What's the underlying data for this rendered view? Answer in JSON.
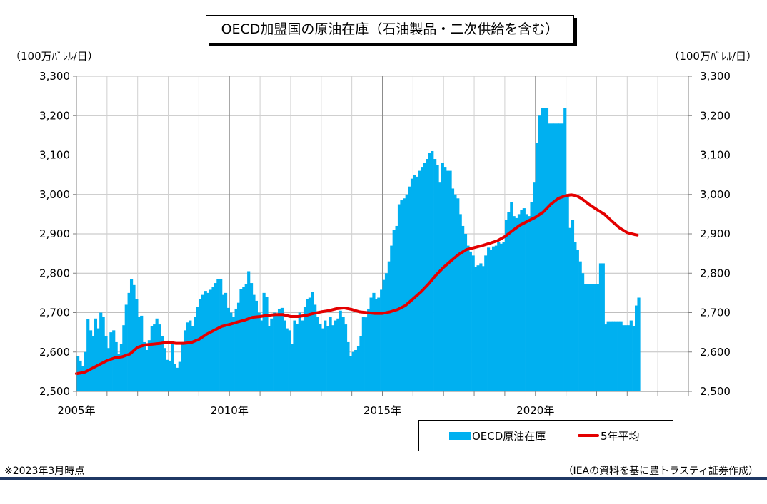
{
  "title": "OECD加盟国の原油在庫（石油製品・二次供給を含む）",
  "unit_left": "（100万ﾊﾞﾚﾙ/日）",
  "unit_right": "（100万ﾊﾞﾚﾙ/日）",
  "footnote": "※2023年3月時点",
  "source": "（IEAの資料を基に豊トラスティ証券作成）",
  "chart_data": {
    "type": "bar",
    "title": "OECD加盟国の原油在庫（石油製品・二次供給を含む）",
    "ylim": [
      2500,
      3300
    ],
    "y_ticks": [
      "2,500",
      "2,600",
      "2,700",
      "2,800",
      "2,900",
      "3,000",
      "3,100",
      "3,200",
      "3,300"
    ],
    "x_range": [
      2005.0,
      2025.0
    ],
    "x_ticks": [
      "2005年",
      "2010年",
      "2015年",
      "2020年"
    ],
    "x_tick_values": [
      2005,
      2010,
      2015,
      2020
    ],
    "grid": true,
    "legend_position": "bottom-right",
    "colors": {
      "bars": "#00b0f0",
      "line": "#e30000"
    },
    "series": [
      {
        "name": "OECD原油在庫",
        "type": "bar",
        "points": [
          [
            2005.0,
            2590
          ],
          [
            2005.08,
            2578
          ],
          [
            2005.17,
            2565
          ],
          [
            2005.25,
            2600
          ],
          [
            2005.33,
            2683
          ],
          [
            2005.42,
            2655
          ],
          [
            2005.5,
            2640
          ],
          [
            2005.58,
            2685
          ],
          [
            2005.67,
            2660
          ],
          [
            2005.75,
            2700
          ],
          [
            2005.83,
            2690
          ],
          [
            2005.92,
            2640
          ],
          [
            2006.0,
            2610
          ],
          [
            2006.08,
            2650
          ],
          [
            2006.17,
            2655
          ],
          [
            2006.25,
            2625
          ],
          [
            2006.33,
            2595
          ],
          [
            2006.42,
            2620
          ],
          [
            2006.5,
            2668
          ],
          [
            2006.58,
            2720
          ],
          [
            2006.67,
            2750
          ],
          [
            2006.75,
            2785
          ],
          [
            2006.83,
            2770
          ],
          [
            2006.92,
            2735
          ],
          [
            2007.0,
            2690
          ],
          [
            2007.08,
            2692
          ],
          [
            2007.17,
            2625
          ],
          [
            2007.25,
            2605
          ],
          [
            2007.33,
            2630
          ],
          [
            2007.42,
            2665
          ],
          [
            2007.5,
            2670
          ],
          [
            2007.58,
            2685
          ],
          [
            2007.67,
            2670
          ],
          [
            2007.75,
            2640
          ],
          [
            2007.83,
            2610
          ],
          [
            2007.92,
            2580
          ],
          [
            2008.0,
            2578
          ],
          [
            2008.08,
            2625
          ],
          [
            2008.17,
            2570
          ],
          [
            2008.25,
            2560
          ],
          [
            2008.33,
            2575
          ],
          [
            2008.42,
            2625
          ],
          [
            2008.5,
            2655
          ],
          [
            2008.58,
            2675
          ],
          [
            2008.67,
            2680
          ],
          [
            2008.75,
            2665
          ],
          [
            2008.83,
            2690
          ],
          [
            2008.92,
            2715
          ],
          [
            2009.0,
            2735
          ],
          [
            2009.08,
            2745
          ],
          [
            2009.17,
            2755
          ],
          [
            2009.25,
            2750
          ],
          [
            2009.33,
            2758
          ],
          [
            2009.42,
            2765
          ],
          [
            2009.5,
            2775
          ],
          [
            2009.58,
            2785
          ],
          [
            2009.67,
            2786
          ],
          [
            2009.75,
            2745
          ],
          [
            2009.83,
            2750
          ],
          [
            2009.92,
            2712
          ],
          [
            2010.0,
            2700
          ],
          [
            2010.08,
            2690
          ],
          [
            2010.17,
            2710
          ],
          [
            2010.25,
            2725
          ],
          [
            2010.33,
            2760
          ],
          [
            2010.42,
            2765
          ],
          [
            2010.5,
            2772
          ],
          [
            2010.58,
            2805
          ],
          [
            2010.67,
            2775
          ],
          [
            2010.75,
            2745
          ],
          [
            2010.83,
            2730
          ],
          [
            2010.92,
            2700
          ],
          [
            2011.0,
            2680
          ],
          [
            2011.08,
            2750
          ],
          [
            2011.17,
            2740
          ],
          [
            2011.25,
            2665
          ],
          [
            2011.33,
            2685
          ],
          [
            2011.42,
            2700
          ],
          [
            2011.5,
            2695
          ],
          [
            2011.58,
            2710
          ],
          [
            2011.67,
            2712
          ],
          [
            2011.75,
            2680
          ],
          [
            2011.83,
            2660
          ],
          [
            2011.92,
            2655
          ],
          [
            2012.0,
            2620
          ],
          [
            2012.08,
            2680
          ],
          [
            2012.17,
            2672
          ],
          [
            2012.25,
            2700
          ],
          [
            2012.33,
            2680
          ],
          [
            2012.42,
            2715
          ],
          [
            2012.5,
            2735
          ],
          [
            2012.58,
            2738
          ],
          [
            2012.67,
            2752
          ],
          [
            2012.75,
            2720
          ],
          [
            2012.83,
            2690
          ],
          [
            2012.92,
            2672
          ],
          [
            2013.0,
            2660
          ],
          [
            2013.08,
            2680
          ],
          [
            2013.17,
            2665
          ],
          [
            2013.25,
            2690
          ],
          [
            2013.33,
            2668
          ],
          [
            2013.42,
            2680
          ],
          [
            2013.5,
            2685
          ],
          [
            2013.58,
            2705
          ],
          [
            2013.67,
            2690
          ],
          [
            2013.75,
            2670
          ],
          [
            2013.83,
            2625
          ],
          [
            2013.92,
            2590
          ],
          [
            2014.0,
            2600
          ],
          [
            2014.08,
            2605
          ],
          [
            2014.17,
            2615
          ],
          [
            2014.25,
            2640
          ],
          [
            2014.33,
            2690
          ],
          [
            2014.42,
            2688
          ],
          [
            2014.5,
            2710
          ],
          [
            2014.58,
            2738
          ],
          [
            2014.67,
            2750
          ],
          [
            2014.75,
            2735
          ],
          [
            2014.83,
            2738
          ],
          [
            2014.92,
            2758
          ],
          [
            2015.0,
            2783
          ],
          [
            2015.08,
            2800
          ],
          [
            2015.17,
            2830
          ],
          [
            2015.25,
            2870
          ],
          [
            2015.33,
            2910
          ],
          [
            2015.42,
            2920
          ],
          [
            2015.5,
            2975
          ],
          [
            2015.58,
            2985
          ],
          [
            2015.67,
            2990
          ],
          [
            2015.75,
            3000
          ],
          [
            2015.83,
            3020
          ],
          [
            2015.92,
            3040
          ],
          [
            2016.0,
            3050
          ],
          [
            2016.08,
            3045
          ],
          [
            2016.17,
            3060
          ],
          [
            2016.25,
            3070
          ],
          [
            2016.33,
            3080
          ],
          [
            2016.42,
            3090
          ],
          [
            2016.5,
            3105
          ],
          [
            2016.58,
            3110
          ],
          [
            2016.67,
            3090
          ],
          [
            2016.75,
            3075
          ],
          [
            2016.83,
            3030
          ],
          [
            2016.92,
            3080
          ],
          [
            2017.0,
            3070
          ],
          [
            2017.08,
            3060
          ],
          [
            2017.17,
            3060
          ],
          [
            2017.25,
            3015
          ],
          [
            2017.33,
            3000
          ],
          [
            2017.42,
            2990
          ],
          [
            2017.5,
            2950
          ],
          [
            2017.58,
            2920
          ],
          [
            2017.67,
            2900
          ],
          [
            2017.75,
            2870
          ],
          [
            2017.83,
            2855
          ],
          [
            2017.92,
            2845
          ],
          [
            2018.0,
            2815
          ],
          [
            2018.08,
            2820
          ],
          [
            2018.17,
            2825
          ],
          [
            2018.25,
            2818
          ],
          [
            2018.33,
            2845
          ],
          [
            2018.42,
            2865
          ],
          [
            2018.5,
            2860
          ],
          [
            2018.58,
            2868
          ],
          [
            2018.67,
            2870
          ],
          [
            2018.75,
            2880
          ],
          [
            2018.83,
            2875
          ],
          [
            2018.92,
            2880
          ],
          [
            2019.0,
            2935
          ],
          [
            2019.08,
            2955
          ],
          [
            2019.17,
            2980
          ],
          [
            2019.25,
            2945
          ],
          [
            2019.33,
            2940
          ],
          [
            2019.42,
            2950
          ],
          [
            2019.5,
            2960
          ],
          [
            2019.58,
            2965
          ],
          [
            2019.67,
            2950
          ],
          [
            2019.75,
            2945
          ],
          [
            2019.83,
            2980
          ],
          [
            2019.92,
            3030
          ],
          [
            2020.0,
            3130
          ],
          [
            2020.08,
            3200
          ],
          [
            2020.17,
            3220
          ],
          [
            2020.25,
            3220
          ],
          [
            2020.33,
            3220
          ],
          [
            2020.42,
            3180
          ],
          [
            2020.5,
            3180
          ],
          [
            2020.58,
            3180
          ],
          [
            2020.67,
            3180
          ],
          [
            2020.75,
            3180
          ],
          [
            2020.83,
            3180
          ],
          [
            2020.92,
            3220
          ],
          [
            2021.0,
            3000
          ],
          [
            2021.08,
            2915
          ],
          [
            2021.17,
            2935
          ],
          [
            2021.25,
            2880
          ],
          [
            2021.33,
            2860
          ],
          [
            2021.42,
            2830
          ],
          [
            2021.5,
            2800
          ],
          [
            2021.58,
            2772
          ],
          [
            2021.67,
            2772
          ],
          [
            2021.75,
            2772
          ],
          [
            2021.83,
            2772
          ],
          [
            2021.92,
            2772
          ],
          [
            2022.0,
            2772
          ],
          [
            2022.08,
            2825
          ],
          [
            2022.17,
            2825
          ],
          [
            2022.25,
            2670
          ],
          [
            2022.33,
            2678
          ],
          [
            2022.42,
            2678
          ],
          [
            2022.5,
            2678
          ],
          [
            2022.58,
            2678
          ],
          [
            2022.67,
            2678
          ],
          [
            2022.75,
            2678
          ],
          [
            2022.83,
            2668
          ],
          [
            2022.92,
            2668
          ],
          [
            2023.0,
            2668
          ],
          [
            2023.08,
            2680
          ],
          [
            2023.17,
            2665
          ],
          [
            2023.25,
            2718
          ],
          [
            2023.33,
            2738
          ]
        ]
      },
      {
        "name": "5年平均",
        "type": "line",
        "points": [
          [
            2005.0,
            2545
          ],
          [
            2005.25,
            2548
          ],
          [
            2005.5,
            2558
          ],
          [
            2005.75,
            2568
          ],
          [
            2006.0,
            2578
          ],
          [
            2006.25,
            2585
          ],
          [
            2006.5,
            2588
          ],
          [
            2006.75,
            2595
          ],
          [
            2007.0,
            2612
          ],
          [
            2007.25,
            2618
          ],
          [
            2007.5,
            2620
          ],
          [
            2007.75,
            2622
          ],
          [
            2008.0,
            2625
          ],
          [
            2008.25,
            2622
          ],
          [
            2008.5,
            2622
          ],
          [
            2008.75,
            2624
          ],
          [
            2009.0,
            2632
          ],
          [
            2009.25,
            2645
          ],
          [
            2009.5,
            2655
          ],
          [
            2009.75,
            2665
          ],
          [
            2010.0,
            2670
          ],
          [
            2010.25,
            2676
          ],
          [
            2010.5,
            2681
          ],
          [
            2010.75,
            2688
          ],
          [
            2011.0,
            2690
          ],
          [
            2011.25,
            2693
          ],
          [
            2011.5,
            2695
          ],
          [
            2011.75,
            2695
          ],
          [
            2012.0,
            2690
          ],
          [
            2012.25,
            2690
          ],
          [
            2012.5,
            2693
          ],
          [
            2012.75,
            2698
          ],
          [
            2013.0,
            2702
          ],
          [
            2013.25,
            2705
          ],
          [
            2013.5,
            2710
          ],
          [
            2013.75,
            2712
          ],
          [
            2014.0,
            2708
          ],
          [
            2014.25,
            2702
          ],
          [
            2014.5,
            2700
          ],
          [
            2014.75,
            2698
          ],
          [
            2015.0,
            2698
          ],
          [
            2015.25,
            2702
          ],
          [
            2015.5,
            2708
          ],
          [
            2015.75,
            2718
          ],
          [
            2016.0,
            2735
          ],
          [
            2016.25,
            2752
          ],
          [
            2016.5,
            2772
          ],
          [
            2016.75,
            2795
          ],
          [
            2017.0,
            2815
          ],
          [
            2017.25,
            2832
          ],
          [
            2017.5,
            2848
          ],
          [
            2017.75,
            2860
          ],
          [
            2018.0,
            2865
          ],
          [
            2018.25,
            2870
          ],
          [
            2018.5,
            2876
          ],
          [
            2018.75,
            2882
          ],
          [
            2019.0,
            2893
          ],
          [
            2019.25,
            2908
          ],
          [
            2019.5,
            2922
          ],
          [
            2019.75,
            2932
          ],
          [
            2020.0,
            2942
          ],
          [
            2020.25,
            2955
          ],
          [
            2020.5,
            2975
          ],
          [
            2020.75,
            2990
          ],
          [
            2021.0,
            2997
          ],
          [
            2021.17,
            2999
          ],
          [
            2021.33,
            2997
          ],
          [
            2021.5,
            2990
          ],
          [
            2021.75,
            2975
          ],
          [
            2022.0,
            2962
          ],
          [
            2022.25,
            2950
          ],
          [
            2022.5,
            2932
          ],
          [
            2022.75,
            2915
          ],
          [
            2023.0,
            2903
          ],
          [
            2023.25,
            2898
          ],
          [
            2023.33,
            2897
          ]
        ]
      }
    ]
  }
}
